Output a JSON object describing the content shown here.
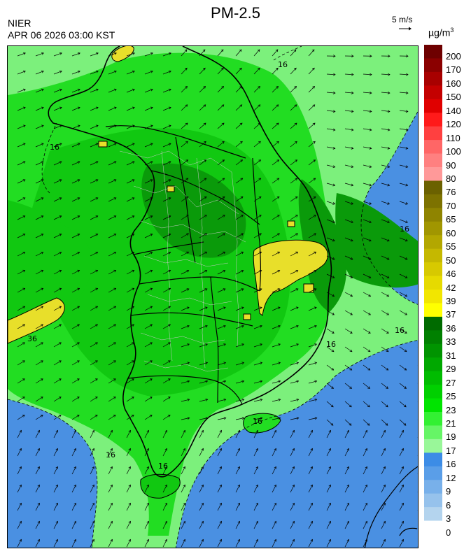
{
  "header": {
    "title": "PM-2.5",
    "agency": "NIER",
    "timestamp": "APR 06 2026 03:00 KST",
    "wind_reference": "5 m/s",
    "unit": "µg/m",
    "unit_exp": "3"
  },
  "legend": {
    "labels": [
      "200",
      "170",
      "160",
      "150",
      "140",
      "120",
      "110",
      "100",
      "90",
      "80",
      "76",
      "70",
      "65",
      "60",
      "55",
      "50",
      "46",
      "42",
      "39",
      "37",
      "36",
      "33",
      "31",
      "29",
      "27",
      "25",
      "23",
      "21",
      "19",
      "17",
      "16",
      "12",
      "9",
      "6",
      "3",
      "0"
    ],
    "colors": [
      "#6e0000",
      "#8b0000",
      "#a80000",
      "#c40000",
      "#e00000",
      "#ff1a1a",
      "#ff4040",
      "#ff6666",
      "#ff8080",
      "#ff9999",
      "#6b6100",
      "#7d7200",
      "#8f8400",
      "#a19600",
      "#b3a700",
      "#c5b800",
      "#d7c900",
      "#e6da00",
      "#f2e600",
      "#ffff00",
      "#006b00",
      "#008000",
      "#009400",
      "#00a800",
      "#00bc00",
      "#00d000",
      "#00e400",
      "#33f033",
      "#66f566",
      "#99f799",
      "#3c8ce6",
      "#5a9ee8",
      "#78b0ea",
      "#96c2ec",
      "#b4d4ee",
      "#ffffff"
    ]
  },
  "map": {
    "contour_labels": [
      "36",
      "16",
      "16",
      "16",
      "16",
      "16",
      "16",
      "16",
      "16"
    ],
    "palette": {
      "sea_blue": "#4a90e2",
      "light_green": "#7cf07c",
      "mid_green": "#22dd22",
      "green": "#11c811",
      "dark_green": "#0a9a0a",
      "yellow": "#e8df2a",
      "coast": "#000000",
      "border": "#c8c8c8"
    }
  }
}
